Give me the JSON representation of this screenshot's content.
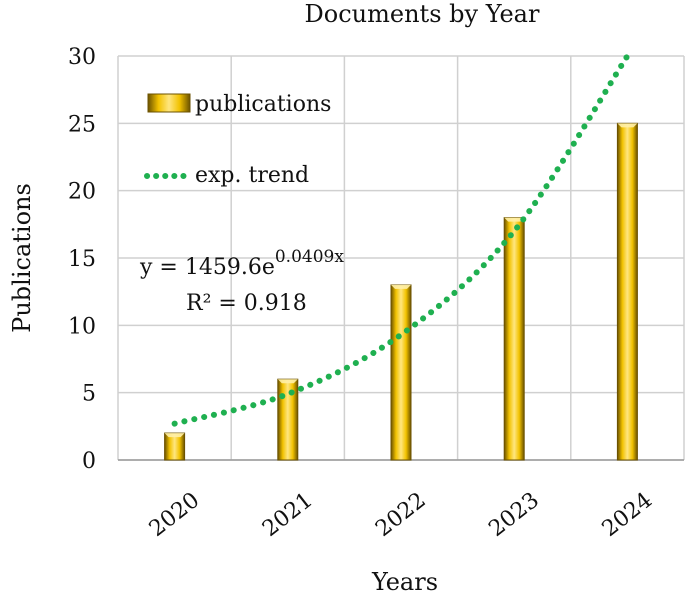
{
  "chart_data": {
    "type": "bar",
    "title": "Documents by Year",
    "xlabel": "Years",
    "ylabel": "Publications",
    "categories": [
      "2020",
      "2021",
      "2022",
      "2023",
      "2024"
    ],
    "series": [
      {
        "name": "publications",
        "values": [
          2,
          6,
          13,
          18,
          25
        ]
      }
    ],
    "trendline": {
      "name": "exp. trend",
      "type": "exponential",
      "style": "dotted",
      "points": [
        [
          2020,
          2.7
        ],
        [
          2021,
          4.9
        ],
        [
          2022,
          9.3
        ],
        [
          2023,
          17.0
        ],
        [
          2024,
          30.0
        ]
      ],
      "equation_prefix": "y = 1459.6e",
      "equation_exponent": "0.0409x",
      "r_squared": "R² = 0.918"
    },
    "ylim": [
      0,
      30
    ],
    "yticks": [
      "0",
      "5",
      "10",
      "15",
      "20",
      "25",
      "30"
    ],
    "grid": true,
    "legend_position": "top-left",
    "colors": {
      "bar": "#f2c200",
      "bar_light": "#ffe680",
      "bar_dark": "#8a6a00",
      "trend": "#1fb050",
      "grid": "#d0d0d0",
      "axis": "#9a9a9a"
    }
  }
}
